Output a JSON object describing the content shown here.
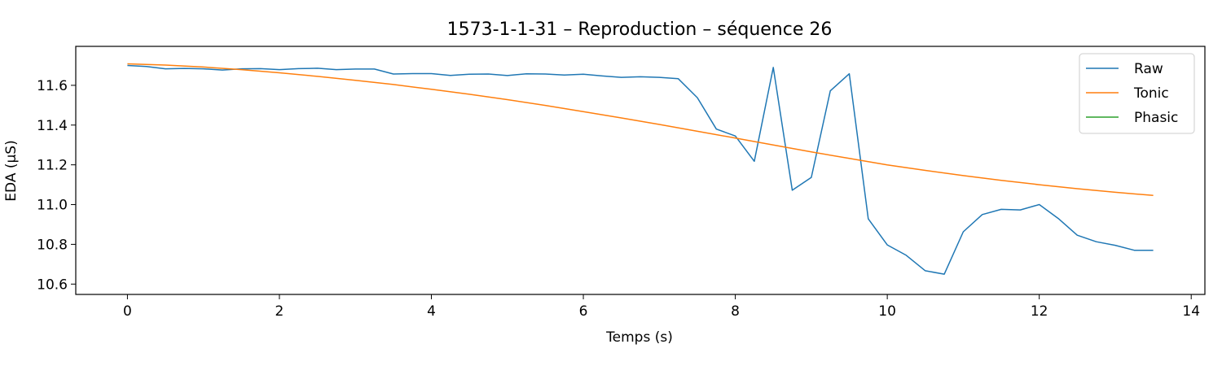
{
  "chart_data": {
    "type": "line",
    "title": "1573-1-1-31 – Reproduction – séquence 26",
    "xlabel": "Temps (s)",
    "ylabel": "EDA (µS)",
    "xlim": [
      -0.68,
      14.18
    ],
    "ylim": [
      10.548,
      11.796
    ],
    "xticks": [
      0,
      2,
      4,
      6,
      8,
      10,
      12,
      14
    ],
    "yticks": [
      10.6,
      10.8,
      11.0,
      11.2,
      11.4,
      11.6
    ],
    "xtick_labels": [
      "0",
      "2",
      "4",
      "6",
      "8",
      "10",
      "12",
      "14"
    ],
    "ytick_labels": [
      "10.6",
      "10.8",
      "11.0",
      "11.2",
      "11.4",
      "11.6"
    ],
    "grid": false,
    "legend_position": "top-right",
    "colors": {
      "Raw": "#1f77b4",
      "Tonic": "#ff7f0e",
      "Phasic": "#2ca02c"
    },
    "series": [
      {
        "name": "Raw",
        "x": [
          0.0,
          0.25,
          0.5,
          0.75,
          1.0,
          1.25,
          1.5,
          1.75,
          2.0,
          2.25,
          2.5,
          2.75,
          3.0,
          3.25,
          3.5,
          3.75,
          4.0,
          4.25,
          4.5,
          4.75,
          5.0,
          5.25,
          5.5,
          5.75,
          6.0,
          6.25,
          6.5,
          6.75,
          7.0,
          7.25,
          7.5,
          7.75,
          8.0,
          8.25,
          8.5,
          8.75,
          9.0,
          9.25,
          9.5,
          9.75,
          10.0,
          10.25,
          10.5,
          10.75,
          11.0,
          11.25,
          11.5,
          11.75,
          12.0,
          12.25,
          12.5,
          12.75,
          13.0,
          13.25,
          13.5
        ],
        "y": [
          11.7,
          11.695,
          11.683,
          11.685,
          11.683,
          11.677,
          11.683,
          11.684,
          11.679,
          11.684,
          11.686,
          11.679,
          11.682,
          11.682,
          11.657,
          11.659,
          11.659,
          11.65,
          11.656,
          11.657,
          11.649,
          11.658,
          11.657,
          11.652,
          11.656,
          11.647,
          11.64,
          11.643,
          11.64,
          11.633,
          11.538,
          11.38,
          11.345,
          11.218,
          11.69,
          11.072,
          11.137,
          11.572,
          11.658,
          10.928,
          10.797,
          10.745,
          10.667,
          10.65,
          10.863,
          10.95,
          10.976,
          10.973,
          11.0,
          10.93,
          10.846,
          10.813,
          10.795,
          10.77,
          10.77
        ],
        "y_note": ""
      },
      {
        "name": "Tonic",
        "x": [
          0.0,
          0.5,
          1.0,
          1.5,
          2.0,
          2.5,
          3.0,
          3.5,
          4.0,
          4.5,
          5.0,
          5.5,
          6.0,
          6.5,
          7.0,
          7.5,
          8.0,
          8.5,
          9.0,
          9.5,
          10.0,
          10.5,
          11.0,
          11.5,
          12.0,
          12.5,
          13.0,
          13.5
        ],
        "y": [
          11.708,
          11.702,
          11.692,
          11.679,
          11.663,
          11.645,
          11.625,
          11.604,
          11.58,
          11.555,
          11.528,
          11.499,
          11.468,
          11.436,
          11.403,
          11.369,
          11.335,
          11.3,
          11.265,
          11.232,
          11.2,
          11.172,
          11.146,
          11.122,
          11.1,
          11.08,
          11.062,
          11.046
        ]
      },
      {
        "name": "Phasic",
        "x": [],
        "y": []
      }
    ]
  }
}
